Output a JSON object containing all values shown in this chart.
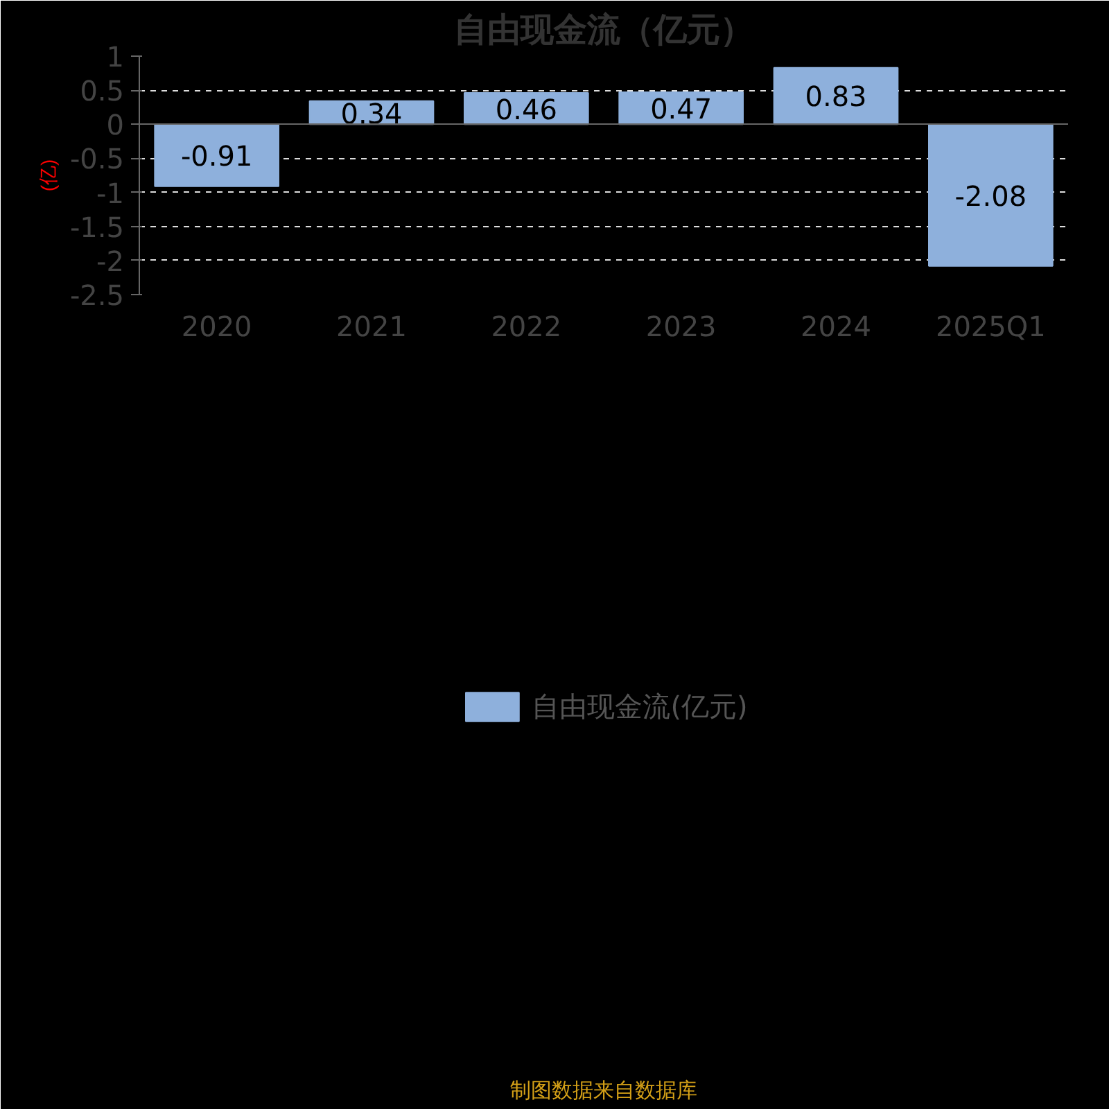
{
  "chart_data": {
    "type": "bar",
    "title": "自由现金流（亿元）",
    "ylabel": "(亿)",
    "categories": [
      "2020",
      "2021",
      "2022",
      "2023",
      "2024",
      "2025Q1"
    ],
    "series": [
      {
        "name": "自由现金流(亿元)",
        "color": "#8eb0dc",
        "values": [
          -0.91,
          0.34,
          0.46,
          0.47,
          0.83,
          -2.08
        ]
      }
    ],
    "ylim": [
      -2.5,
      1
    ],
    "yticks": [
      1,
      0.5,
      0,
      -0.5,
      -1,
      -1.5,
      -2,
      -2.5
    ],
    "grid": "y",
    "data_labels": true,
    "legend": "bottom",
    "annotations": [
      "制图数据来自数据库"
    ]
  }
}
